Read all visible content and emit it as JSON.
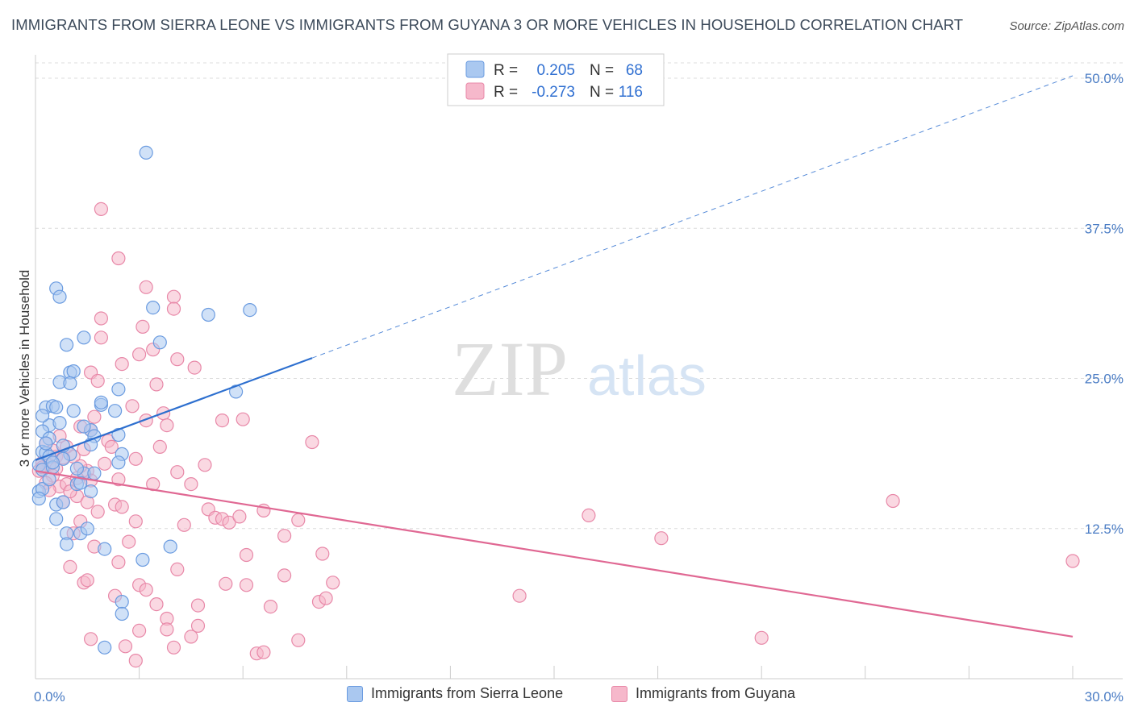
{
  "header": {
    "title": "IMMIGRANTS FROM SIERRA LEONE VS IMMIGRANTS FROM GUYANA 3 OR MORE VEHICLES IN HOUSEHOLD CORRELATION CHART",
    "source": "Source: ZipAtlas.com"
  },
  "watermark": {
    "zip": "ZIP",
    "atlas": "atlas"
  },
  "colors": {
    "blue_fill": "#aac8f0",
    "blue_stroke": "#6a9be0",
    "blue_line": "#2d6fcf",
    "pink_fill": "#f6b8cb",
    "pink_stroke": "#e888a8",
    "pink_line": "#e06893",
    "grid": "#dcdcdc",
    "tick_text": "#4a7cc4"
  },
  "legend": {
    "rows": [
      {
        "r_label": "R =",
        "r_value": "0.205",
        "n_label": "N =",
        "n_value": "68"
      },
      {
        "r_label": "R =",
        "r_value": "-0.273",
        "n_label": "N =",
        "n_value": "116"
      }
    ]
  },
  "bottom_legend": {
    "series1": "Immigrants from Sierra Leone",
    "series2": "Immigrants from Guyana"
  },
  "chart_data": {
    "type": "scatter",
    "title": "IMMIGRANTS FROM SIERRA LEONE VS IMMIGRANTS FROM GUYANA 3 OR MORE VEHICLES IN HOUSEHOLD CORRELATION CHART",
    "xlabel": "",
    "ylabel": "3 or more Vehicles in Household",
    "xlim": [
      0,
      30
    ],
    "ylim": [
      0,
      52
    ],
    "x_tick_labels": [
      "0.0%",
      "30.0%"
    ],
    "y_ticks": [
      12.5,
      25.0,
      37.5,
      50.0
    ],
    "y_tick_labels": [
      "12.5%",
      "25.0%",
      "37.5%",
      "50.0%"
    ],
    "x_tick_marks": [
      3,
      6,
      9,
      12,
      15,
      18,
      21,
      24,
      27,
      30
    ],
    "series": [
      {
        "name": "Immigrants from Sierra Leone",
        "R": 0.205,
        "N": 68,
        "trend": {
          "x0": 0.0,
          "y0": 18.2,
          "x1": 8.0,
          "y1": 26.7,
          "dash_to_x": 30.0,
          "dash_to_y": 50.2
        },
        "points": [
          [
            3.2,
            43.8
          ],
          [
            0.6,
            32.5
          ],
          [
            0.7,
            31.8
          ],
          [
            3.4,
            30.9
          ],
          [
            5.0,
            30.3
          ],
          [
            6.2,
            30.7
          ],
          [
            0.9,
            27.8
          ],
          [
            1.4,
            28.4
          ],
          [
            3.6,
            28.0
          ],
          [
            1.0,
            25.5
          ],
          [
            1.1,
            25.6
          ],
          [
            0.7,
            24.7
          ],
          [
            1.0,
            24.6
          ],
          [
            2.4,
            24.1
          ],
          [
            5.8,
            23.9
          ],
          [
            0.3,
            22.6
          ],
          [
            0.5,
            22.7
          ],
          [
            0.6,
            22.6
          ],
          [
            1.1,
            22.3
          ],
          [
            1.9,
            22.8
          ],
          [
            1.9,
            23.0
          ],
          [
            2.3,
            22.3
          ],
          [
            0.4,
            21.1
          ],
          [
            0.7,
            21.3
          ],
          [
            1.6,
            20.7
          ],
          [
            0.2,
            20.6
          ],
          [
            0.4,
            20.0
          ],
          [
            1.7,
            20.2
          ],
          [
            2.4,
            20.3
          ],
          [
            1.6,
            19.5
          ],
          [
            0.2,
            18.9
          ],
          [
            0.3,
            18.8
          ],
          [
            0.4,
            18.5
          ],
          [
            1.0,
            18.7
          ],
          [
            0.8,
            18.3
          ],
          [
            2.5,
            18.7
          ],
          [
            0.1,
            17.8
          ],
          [
            0.2,
            17.4
          ],
          [
            0.5,
            17.6
          ],
          [
            1.4,
            17.1
          ],
          [
            1.7,
            17.1
          ],
          [
            2.4,
            18.0
          ],
          [
            0.1,
            15.6
          ],
          [
            0.2,
            15.8
          ],
          [
            1.2,
            16.2
          ],
          [
            1.3,
            16.3
          ],
          [
            1.6,
            15.6
          ],
          [
            0.1,
            15.0
          ],
          [
            0.6,
            14.5
          ],
          [
            0.8,
            14.7
          ],
          [
            0.6,
            13.3
          ],
          [
            0.9,
            12.1
          ],
          [
            1.3,
            12.1
          ],
          [
            1.5,
            12.5
          ],
          [
            0.9,
            11.2
          ],
          [
            2.0,
            10.8
          ],
          [
            3.9,
            11.0
          ],
          [
            3.1,
            9.9
          ],
          [
            2.5,
            6.4
          ],
          [
            2.5,
            5.4
          ],
          [
            2.0,
            2.6
          ],
          [
            0.3,
            19.6
          ],
          [
            0.5,
            18.0
          ],
          [
            1.2,
            17.5
          ],
          [
            0.4,
            16.6
          ],
          [
            0.2,
            21.9
          ],
          [
            1.4,
            21.0
          ],
          [
            0.8,
            19.4
          ]
        ]
      },
      {
        "name": "Immigrants from Guyana",
        "R": -0.273,
        "N": 116,
        "trend": {
          "x0": 0.0,
          "y0": 17.3,
          "x1": 30.0,
          "y1": 3.5
        },
        "points": [
          [
            1.9,
            39.1
          ],
          [
            2.4,
            35.0
          ],
          [
            3.2,
            32.6
          ],
          [
            4.0,
            31.8
          ],
          [
            4.0,
            30.8
          ],
          [
            1.9,
            30.0
          ],
          [
            3.1,
            29.3
          ],
          [
            1.9,
            28.4
          ],
          [
            3.4,
            27.4
          ],
          [
            3.0,
            27.0
          ],
          [
            4.1,
            26.6
          ],
          [
            2.5,
            26.2
          ],
          [
            4.6,
            25.9
          ],
          [
            1.6,
            25.5
          ],
          [
            1.8,
            24.8
          ],
          [
            3.5,
            24.5
          ],
          [
            2.8,
            22.7
          ],
          [
            3.7,
            22.1
          ],
          [
            1.7,
            21.8
          ],
          [
            3.2,
            21.5
          ],
          [
            5.4,
            21.5
          ],
          [
            6.0,
            21.6
          ],
          [
            1.3,
            21.0
          ],
          [
            3.8,
            21.1
          ],
          [
            1.6,
            20.7
          ],
          [
            2.1,
            19.8
          ],
          [
            8.0,
            19.7
          ],
          [
            0.3,
            19.6
          ],
          [
            0.9,
            19.3
          ],
          [
            1.4,
            19.1
          ],
          [
            2.2,
            19.3
          ],
          [
            0.6,
            18.5
          ],
          [
            0.8,
            18.4
          ],
          [
            1.1,
            18.5
          ],
          [
            2.9,
            18.3
          ],
          [
            0.2,
            18.0
          ],
          [
            0.4,
            17.8
          ],
          [
            0.6,
            17.5
          ],
          [
            2.0,
            17.9
          ],
          [
            4.9,
            17.8
          ],
          [
            0.1,
            17.3
          ],
          [
            1.5,
            17.3
          ],
          [
            4.1,
            17.2
          ],
          [
            0.5,
            16.9
          ],
          [
            1.2,
            16.7
          ],
          [
            1.6,
            16.5
          ],
          [
            2.4,
            16.6
          ],
          [
            0.3,
            16.3
          ],
          [
            0.7,
            16.0
          ],
          [
            0.9,
            16.2
          ],
          [
            3.4,
            16.2
          ],
          [
            4.5,
            16.2
          ],
          [
            0.4,
            15.7
          ],
          [
            1.2,
            15.2
          ],
          [
            0.8,
            14.7
          ],
          [
            1.5,
            14.7
          ],
          [
            2.3,
            14.5
          ],
          [
            2.5,
            14.3
          ],
          [
            5.0,
            14.1
          ],
          [
            1.3,
            13.1
          ],
          [
            2.9,
            13.1
          ],
          [
            5.2,
            13.4
          ],
          [
            5.4,
            13.3
          ],
          [
            5.6,
            13.0
          ],
          [
            5.9,
            13.5
          ],
          [
            7.6,
            13.2
          ],
          [
            16.0,
            13.6
          ],
          [
            24.8,
            14.8
          ],
          [
            1.1,
            12.1
          ],
          [
            7.2,
            11.9
          ],
          [
            18.1,
            11.7
          ],
          [
            1.7,
            11.0
          ],
          [
            6.1,
            10.3
          ],
          [
            8.3,
            10.4
          ],
          [
            1.0,
            9.3
          ],
          [
            2.4,
            9.7
          ],
          [
            4.1,
            9.1
          ],
          [
            30.0,
            9.8
          ],
          [
            7.2,
            8.6
          ],
          [
            1.4,
            8.0
          ],
          [
            1.5,
            8.2
          ],
          [
            3.0,
            7.8
          ],
          [
            5.5,
            7.9
          ],
          [
            6.1,
            7.8
          ],
          [
            8.6,
            8.0
          ],
          [
            3.2,
            7.4
          ],
          [
            2.3,
            6.9
          ],
          [
            14.0,
            6.9
          ],
          [
            3.5,
            6.2
          ],
          [
            4.7,
            6.1
          ],
          [
            6.8,
            6.0
          ],
          [
            8.2,
            6.4
          ],
          [
            8.4,
            6.7
          ],
          [
            3.8,
            5.0
          ],
          [
            3.0,
            4.0
          ],
          [
            3.8,
            4.1
          ],
          [
            4.7,
            4.4
          ],
          [
            1.6,
            3.3
          ],
          [
            4.5,
            3.5
          ],
          [
            7.6,
            3.2
          ],
          [
            21.0,
            3.4
          ],
          [
            2.6,
            2.7
          ],
          [
            4.0,
            2.6
          ],
          [
            6.4,
            2.1
          ],
          [
            6.6,
            2.2
          ],
          [
            2.9,
            1.5
          ],
          [
            0.2,
            17.6
          ],
          [
            0.5,
            19.0
          ],
          [
            1.0,
            15.6
          ],
          [
            1.8,
            13.9
          ],
          [
            3.6,
            19.3
          ],
          [
            2.7,
            11.4
          ],
          [
            6.6,
            14.0
          ],
          [
            4.3,
            12.8
          ],
          [
            0.7,
            20.2
          ],
          [
            1.3,
            17.7
          ]
        ]
      }
    ]
  }
}
